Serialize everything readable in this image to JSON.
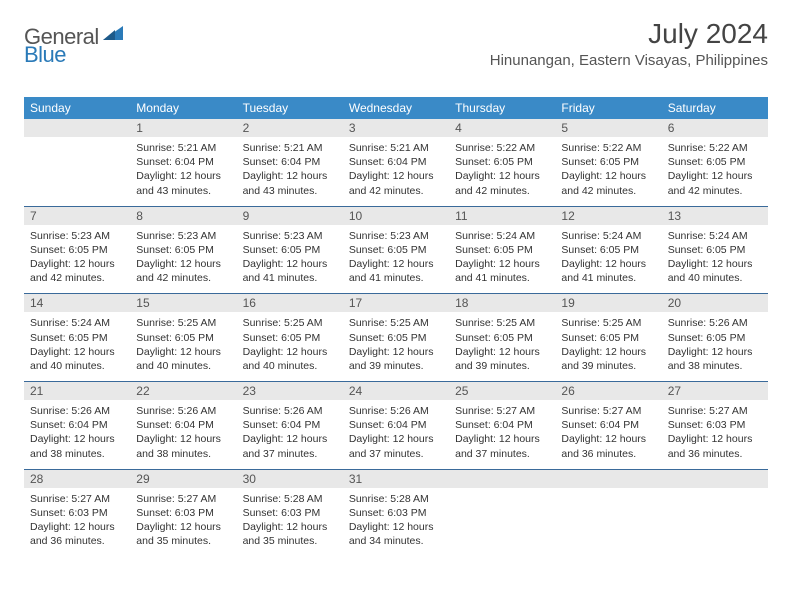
{
  "logo": {
    "text1": "General",
    "text2": "Blue"
  },
  "title": "July 2024",
  "location": "Hinunangan, Eastern Visayas, Philippines",
  "colors": {
    "header_bg": "#3a8ac7",
    "header_text": "#ffffff",
    "daynum_bg": "#e8e8e8",
    "border": "#3a6a9a",
    "logo_gray": "#555555",
    "logo_blue": "#2a7ab8"
  },
  "dayNames": [
    "Sunday",
    "Monday",
    "Tuesday",
    "Wednesday",
    "Thursday",
    "Friday",
    "Saturday"
  ],
  "weeks": [
    [
      {
        "n": "",
        "l1": "",
        "l2": "",
        "l3": "",
        "l4": ""
      },
      {
        "n": "1",
        "l1": "Sunrise: 5:21 AM",
        "l2": "Sunset: 6:04 PM",
        "l3": "Daylight: 12 hours",
        "l4": "and 43 minutes."
      },
      {
        "n": "2",
        "l1": "Sunrise: 5:21 AM",
        "l2": "Sunset: 6:04 PM",
        "l3": "Daylight: 12 hours",
        "l4": "and 43 minutes."
      },
      {
        "n": "3",
        "l1": "Sunrise: 5:21 AM",
        "l2": "Sunset: 6:04 PM",
        "l3": "Daylight: 12 hours",
        "l4": "and 42 minutes."
      },
      {
        "n": "4",
        "l1": "Sunrise: 5:22 AM",
        "l2": "Sunset: 6:05 PM",
        "l3": "Daylight: 12 hours",
        "l4": "and 42 minutes."
      },
      {
        "n": "5",
        "l1": "Sunrise: 5:22 AM",
        "l2": "Sunset: 6:05 PM",
        "l3": "Daylight: 12 hours",
        "l4": "and 42 minutes."
      },
      {
        "n": "6",
        "l1": "Sunrise: 5:22 AM",
        "l2": "Sunset: 6:05 PM",
        "l3": "Daylight: 12 hours",
        "l4": "and 42 minutes."
      }
    ],
    [
      {
        "n": "7",
        "l1": "Sunrise: 5:23 AM",
        "l2": "Sunset: 6:05 PM",
        "l3": "Daylight: 12 hours",
        "l4": "and 42 minutes."
      },
      {
        "n": "8",
        "l1": "Sunrise: 5:23 AM",
        "l2": "Sunset: 6:05 PM",
        "l3": "Daylight: 12 hours",
        "l4": "and 42 minutes."
      },
      {
        "n": "9",
        "l1": "Sunrise: 5:23 AM",
        "l2": "Sunset: 6:05 PM",
        "l3": "Daylight: 12 hours",
        "l4": "and 41 minutes."
      },
      {
        "n": "10",
        "l1": "Sunrise: 5:23 AM",
        "l2": "Sunset: 6:05 PM",
        "l3": "Daylight: 12 hours",
        "l4": "and 41 minutes."
      },
      {
        "n": "11",
        "l1": "Sunrise: 5:24 AM",
        "l2": "Sunset: 6:05 PM",
        "l3": "Daylight: 12 hours",
        "l4": "and 41 minutes."
      },
      {
        "n": "12",
        "l1": "Sunrise: 5:24 AM",
        "l2": "Sunset: 6:05 PM",
        "l3": "Daylight: 12 hours",
        "l4": "and 41 minutes."
      },
      {
        "n": "13",
        "l1": "Sunrise: 5:24 AM",
        "l2": "Sunset: 6:05 PM",
        "l3": "Daylight: 12 hours",
        "l4": "and 40 minutes."
      }
    ],
    [
      {
        "n": "14",
        "l1": "Sunrise: 5:24 AM",
        "l2": "Sunset: 6:05 PM",
        "l3": "Daylight: 12 hours",
        "l4": "and 40 minutes."
      },
      {
        "n": "15",
        "l1": "Sunrise: 5:25 AM",
        "l2": "Sunset: 6:05 PM",
        "l3": "Daylight: 12 hours",
        "l4": "and 40 minutes."
      },
      {
        "n": "16",
        "l1": "Sunrise: 5:25 AM",
        "l2": "Sunset: 6:05 PM",
        "l3": "Daylight: 12 hours",
        "l4": "and 40 minutes."
      },
      {
        "n": "17",
        "l1": "Sunrise: 5:25 AM",
        "l2": "Sunset: 6:05 PM",
        "l3": "Daylight: 12 hours",
        "l4": "and 39 minutes."
      },
      {
        "n": "18",
        "l1": "Sunrise: 5:25 AM",
        "l2": "Sunset: 6:05 PM",
        "l3": "Daylight: 12 hours",
        "l4": "and 39 minutes."
      },
      {
        "n": "19",
        "l1": "Sunrise: 5:25 AM",
        "l2": "Sunset: 6:05 PM",
        "l3": "Daylight: 12 hours",
        "l4": "and 39 minutes."
      },
      {
        "n": "20",
        "l1": "Sunrise: 5:26 AM",
        "l2": "Sunset: 6:05 PM",
        "l3": "Daylight: 12 hours",
        "l4": "and 38 minutes."
      }
    ],
    [
      {
        "n": "21",
        "l1": "Sunrise: 5:26 AM",
        "l2": "Sunset: 6:04 PM",
        "l3": "Daylight: 12 hours",
        "l4": "and 38 minutes."
      },
      {
        "n": "22",
        "l1": "Sunrise: 5:26 AM",
        "l2": "Sunset: 6:04 PM",
        "l3": "Daylight: 12 hours",
        "l4": "and 38 minutes."
      },
      {
        "n": "23",
        "l1": "Sunrise: 5:26 AM",
        "l2": "Sunset: 6:04 PM",
        "l3": "Daylight: 12 hours",
        "l4": "and 37 minutes."
      },
      {
        "n": "24",
        "l1": "Sunrise: 5:26 AM",
        "l2": "Sunset: 6:04 PM",
        "l3": "Daylight: 12 hours",
        "l4": "and 37 minutes."
      },
      {
        "n": "25",
        "l1": "Sunrise: 5:27 AM",
        "l2": "Sunset: 6:04 PM",
        "l3": "Daylight: 12 hours",
        "l4": "and 37 minutes."
      },
      {
        "n": "26",
        "l1": "Sunrise: 5:27 AM",
        "l2": "Sunset: 6:04 PM",
        "l3": "Daylight: 12 hours",
        "l4": "and 36 minutes."
      },
      {
        "n": "27",
        "l1": "Sunrise: 5:27 AM",
        "l2": "Sunset: 6:03 PM",
        "l3": "Daylight: 12 hours",
        "l4": "and 36 minutes."
      }
    ],
    [
      {
        "n": "28",
        "l1": "Sunrise: 5:27 AM",
        "l2": "Sunset: 6:03 PM",
        "l3": "Daylight: 12 hours",
        "l4": "and 36 minutes."
      },
      {
        "n": "29",
        "l1": "Sunrise: 5:27 AM",
        "l2": "Sunset: 6:03 PM",
        "l3": "Daylight: 12 hours",
        "l4": "and 35 minutes."
      },
      {
        "n": "30",
        "l1": "Sunrise: 5:28 AM",
        "l2": "Sunset: 6:03 PM",
        "l3": "Daylight: 12 hours",
        "l4": "and 35 minutes."
      },
      {
        "n": "31",
        "l1": "Sunrise: 5:28 AM",
        "l2": "Sunset: 6:03 PM",
        "l3": "Daylight: 12 hours",
        "l4": "and 34 minutes."
      },
      {
        "n": "",
        "l1": "",
        "l2": "",
        "l3": "",
        "l4": ""
      },
      {
        "n": "",
        "l1": "",
        "l2": "",
        "l3": "",
        "l4": ""
      },
      {
        "n": "",
        "l1": "",
        "l2": "",
        "l3": "",
        "l4": ""
      }
    ]
  ]
}
